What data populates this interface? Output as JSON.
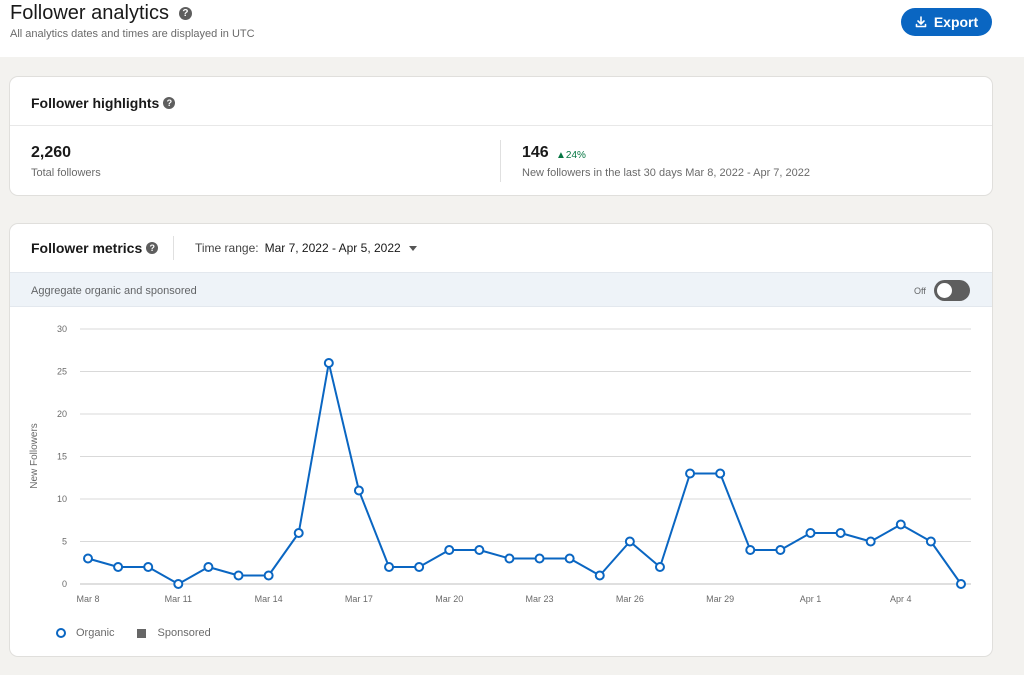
{
  "header": {
    "title": "Follower analytics",
    "subtitle": "All analytics dates and times are displayed in UTC",
    "export_label": "Export"
  },
  "highlights": {
    "heading": "Follower highlights",
    "total_value": "2,260",
    "total_label": "Total followers",
    "new_value": "146",
    "new_change": "▲24%",
    "new_label": "New followers in the last 30 days Mar 8, 2022 - Apr 7, 2022"
  },
  "metrics": {
    "heading": "Follower metrics",
    "time_range_label": "Time range:",
    "time_range_value": "Mar 7, 2022 - Apr 5, 2022",
    "aggregate_label": "Aggregate organic and sponsored",
    "toggle_label": "Off",
    "toggle_on": false
  },
  "colors": {
    "accent": "#0a66c2",
    "positive": "#057642",
    "sponsored": "#666666"
  },
  "chart_data": {
    "type": "line",
    "title": "",
    "xlabel": "",
    "ylabel": "New Followers",
    "ylim": [
      0,
      30
    ],
    "yticks": [
      0,
      5,
      10,
      15,
      20,
      25,
      30
    ],
    "grid": true,
    "legend_placement": "bottom-left",
    "x_tick_labels": [
      {
        "index": 0,
        "label": "Mar 8"
      },
      {
        "index": 3,
        "label": "Mar 11"
      },
      {
        "index": 6,
        "label": "Mar 14"
      },
      {
        "index": 9,
        "label": "Mar 17"
      },
      {
        "index": 12,
        "label": "Mar 20"
      },
      {
        "index": 15,
        "label": "Mar 23"
      },
      {
        "index": 18,
        "label": "Mar 26"
      },
      {
        "index": 21,
        "label": "Mar 29"
      },
      {
        "index": 24,
        "label": "Apr 1"
      },
      {
        "index": 27,
        "label": "Apr 4"
      }
    ],
    "series": [
      {
        "name": "Organic",
        "values": [
          3,
          2,
          2,
          0,
          2,
          1,
          1,
          6,
          26,
          11,
          2,
          2,
          4,
          4,
          3,
          3,
          3,
          1,
          5,
          2,
          13,
          13,
          4,
          4,
          6,
          6,
          5,
          7,
          5,
          0
        ]
      },
      {
        "name": "Sponsored",
        "values": []
      }
    ]
  }
}
